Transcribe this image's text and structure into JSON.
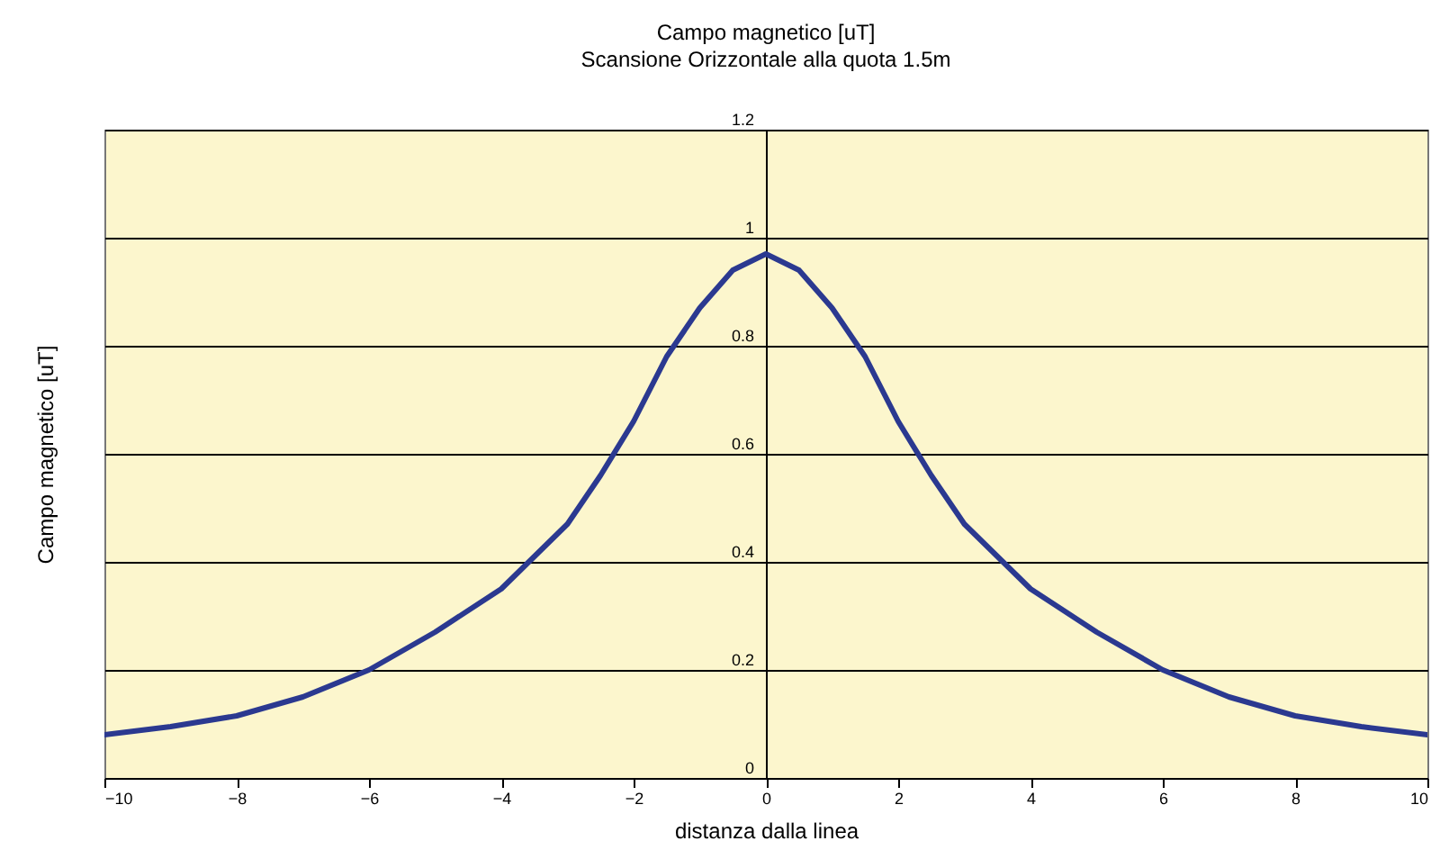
{
  "chart_data": {
    "type": "line",
    "title": "Campo magnetico [uT]",
    "subtitle": "Scansione Orizzontale alla quota 1.5m",
    "xlabel": "distanza dalla linea",
    "ylabel": "Campo magnetico [uT]",
    "x": [
      -10,
      -9,
      -8,
      -7,
      -6,
      -5,
      -4,
      -3.5,
      -3,
      -2.5,
      -2,
      -1.5,
      -1,
      -0.5,
      0,
      0.5,
      1,
      1.5,
      2,
      2.5,
      3,
      3.5,
      4,
      5,
      6,
      7,
      8,
      9,
      10
    ],
    "series": [
      {
        "color": "#2b3990",
        "values": [
          0.08,
          0.095,
          0.115,
          0.15,
          0.2,
          0.27,
          0.35,
          0.41,
          0.47,
          0.56,
          0.66,
          0.78,
          0.87,
          0.94,
          0.97,
          0.94,
          0.87,
          0.78,
          0.66,
          0.56,
          0.47,
          0.41,
          0.35,
          0.27,
          0.2,
          0.15,
          0.115,
          0.095,
          0.08
        ]
      }
    ],
    "xlim": [
      -10,
      10
    ],
    "xticks": [
      -10,
      -8,
      -6,
      -4,
      -2,
      0,
      2,
      4,
      6,
      8,
      10
    ],
    "ylim": [
      0,
      1.2
    ],
    "yticks": [
      0,
      0.2,
      0.4,
      0.6,
      0.8,
      1,
      1.2
    ],
    "grid": "y",
    "marker": "none",
    "line_style": "solid"
  }
}
